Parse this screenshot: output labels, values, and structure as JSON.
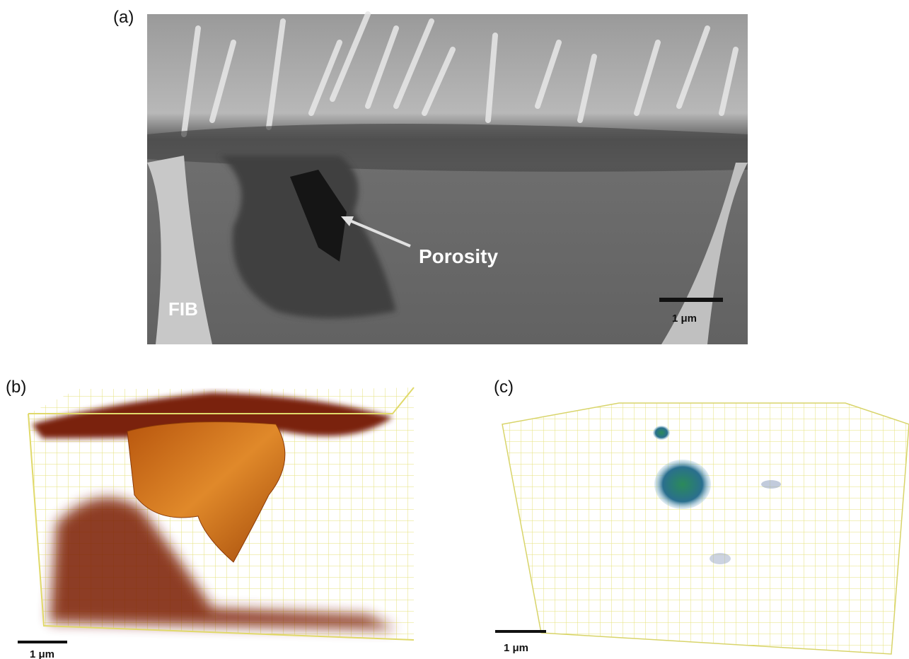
{
  "panels": [
    {
      "label": "(a)",
      "annotations": [
        "Porosity",
        "FIB"
      ],
      "scale_bar": "1 μm"
    },
    {
      "label": "(b)",
      "scale_bar": "1 μm"
    },
    {
      "label": "(c)",
      "scale_bar": "1 μm"
    }
  ]
}
